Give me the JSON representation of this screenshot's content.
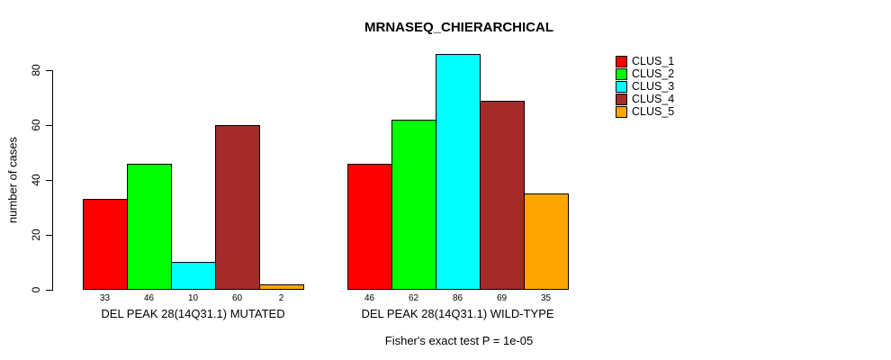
{
  "chart_data": {
    "type": "bar",
    "title": "MRNASEQ_CHIERARCHICAL",
    "ylabel": "number of cases",
    "ylim": [
      0,
      80
    ],
    "yticks": [
      0,
      20,
      40,
      60,
      80
    ],
    "grid": false,
    "legend_position": "right-outside",
    "series": [
      {
        "name": "CLUS_1",
        "color": "#ff0000"
      },
      {
        "name": "CLUS_2",
        "color": "#00ff00"
      },
      {
        "name": "CLUS_3",
        "color": "#00ffff"
      },
      {
        "name": "CLUS_4",
        "color": "#a52a2a"
      },
      {
        "name": "CLUS_5",
        "color": "#ffa500"
      }
    ],
    "groups": [
      {
        "label": "DEL PEAK 28(14Q31.1) MUTATED",
        "values": [
          33,
          46,
          10,
          60,
          2
        ]
      },
      {
        "label": "DEL PEAK 28(14Q31.1) WILD-TYPE",
        "values": [
          46,
          62,
          86,
          69,
          35
        ]
      }
    ],
    "bar_border_color": "#000000",
    "annotation": "Fisher's exact test P = 1e-05"
  }
}
